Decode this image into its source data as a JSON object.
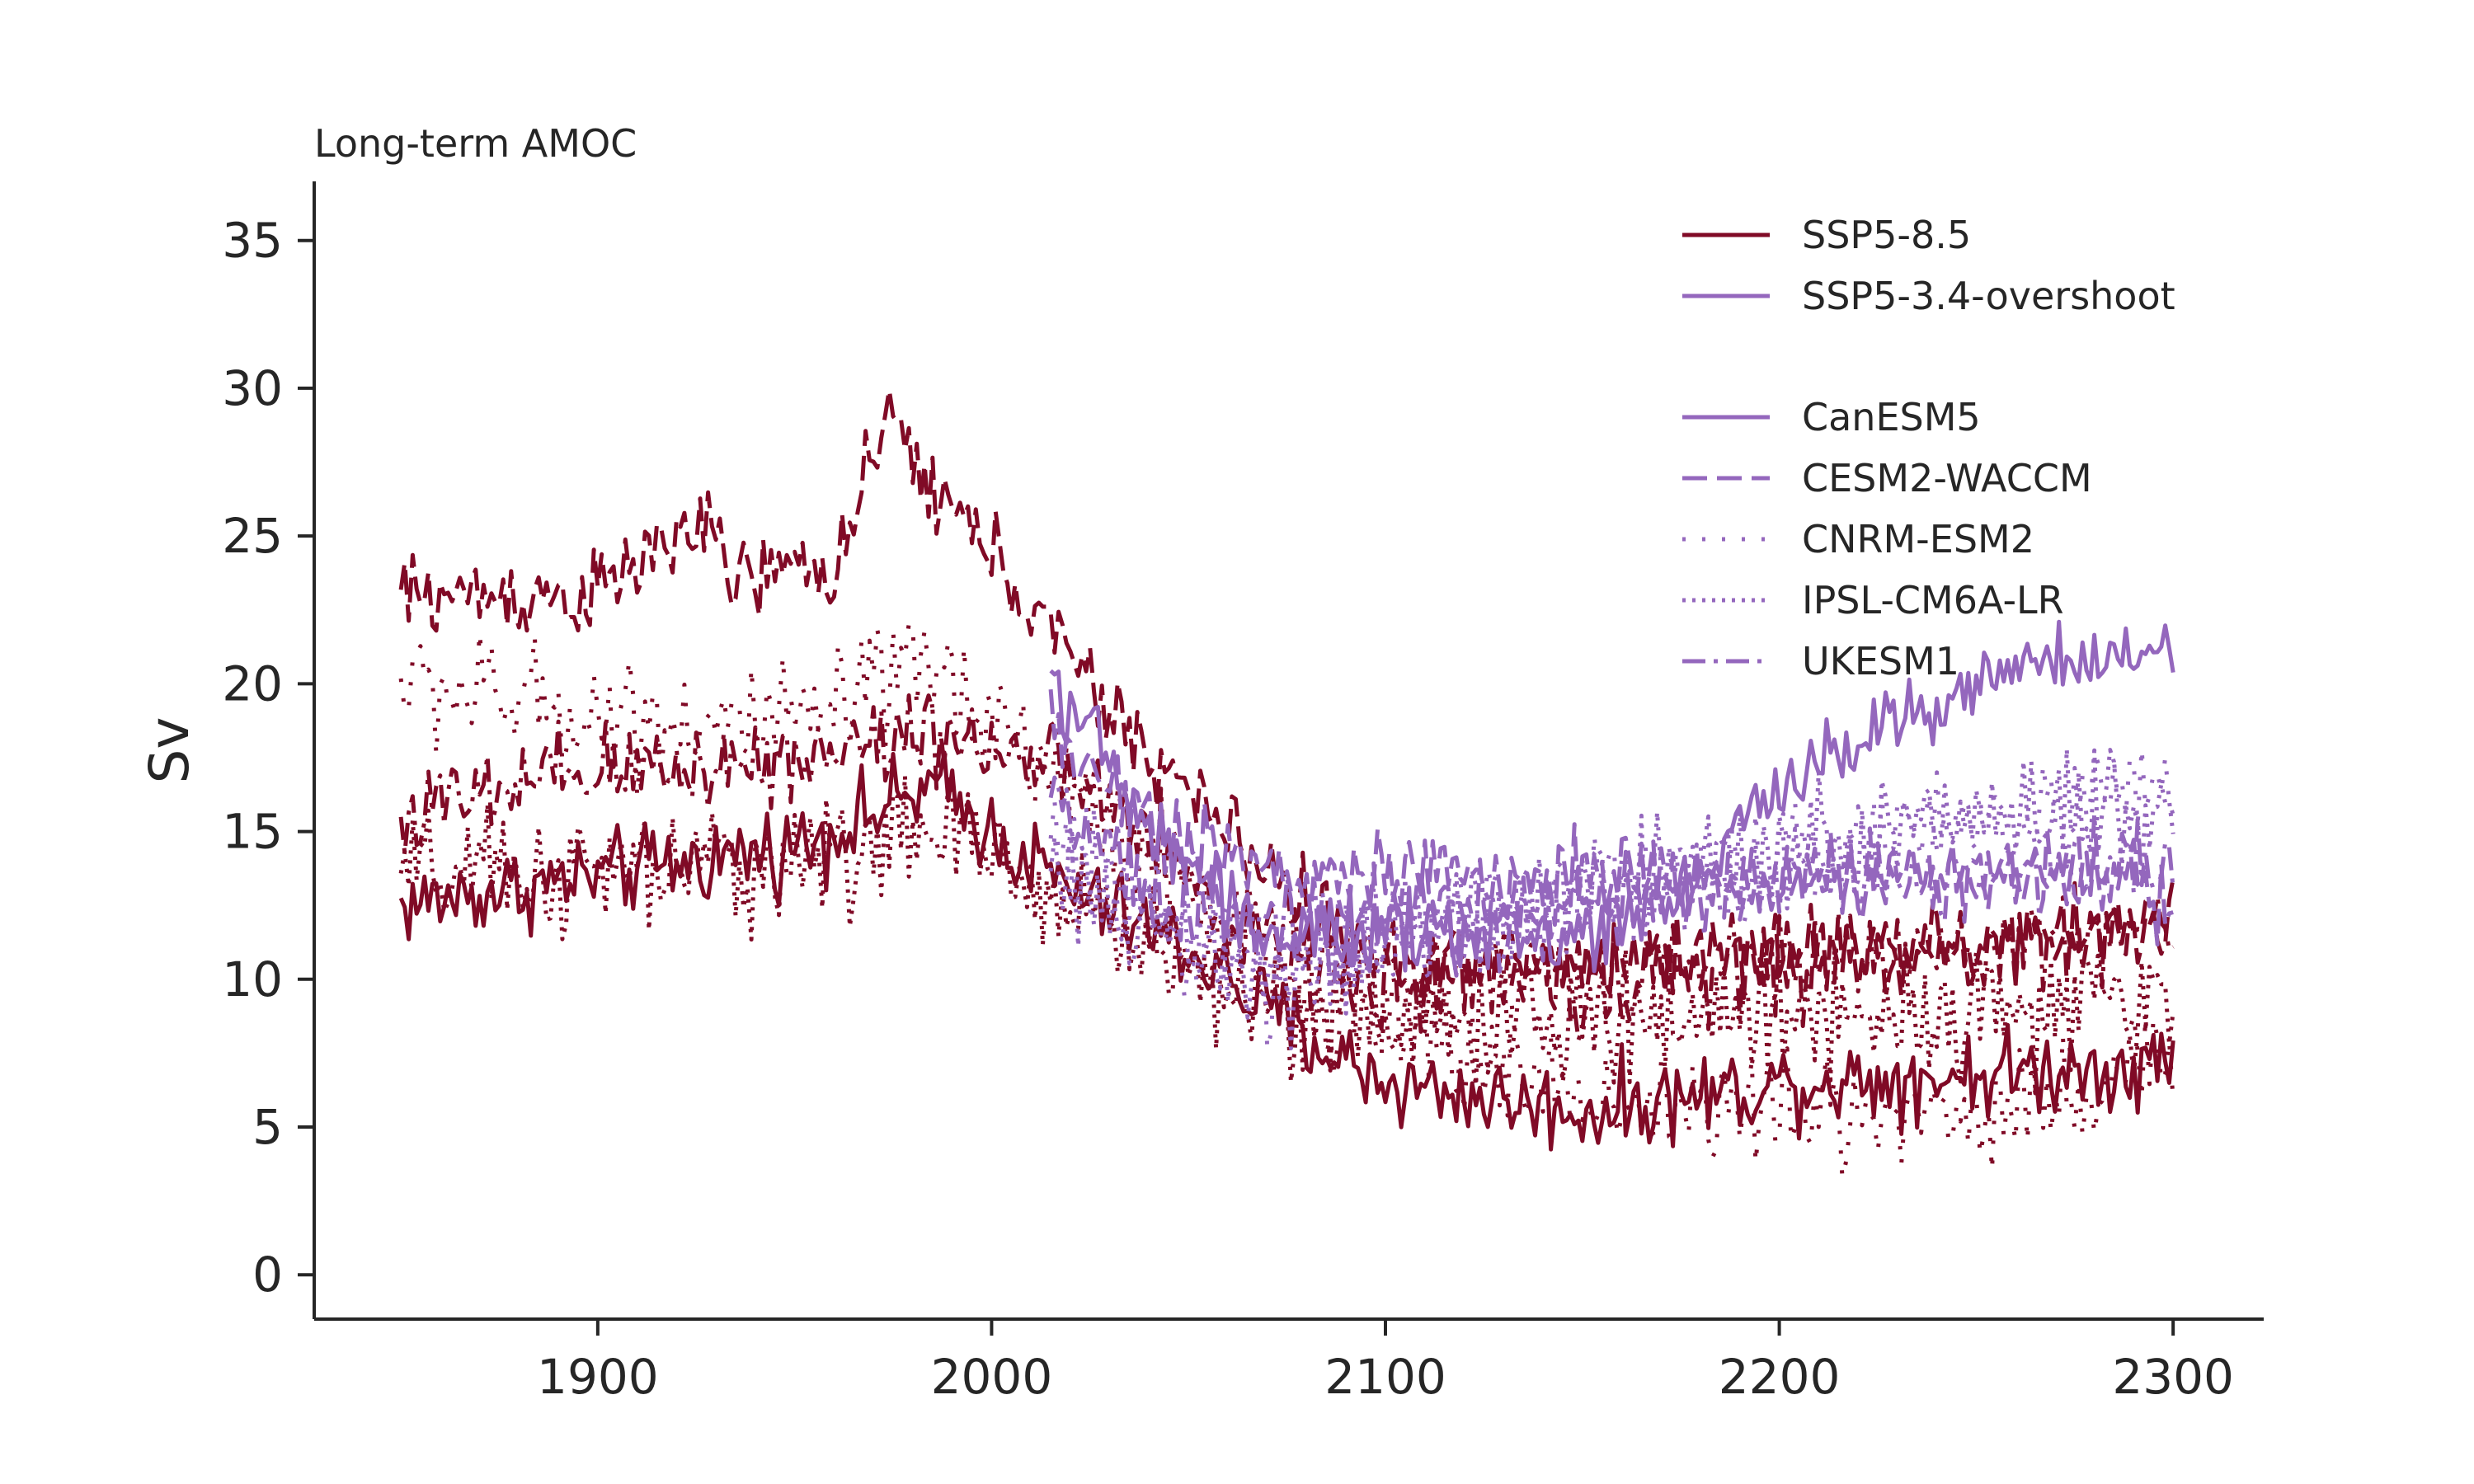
{
  "chart_data": {
    "type": "line",
    "title": "Long-term AMOC",
    "xlabel": "",
    "ylabel": "Sv",
    "xlim": [
      1828,
      2323
    ],
    "ylim": [
      -1.5,
      37
    ],
    "xticks": [
      1900,
      2000,
      2100,
      2200,
      2300
    ],
    "yticks": [
      0,
      5,
      10,
      15,
      20,
      25,
      30,
      35
    ],
    "grid": false,
    "legend_position": "top-right",
    "colors": {
      "SSP5-8.5": "#800a26",
      "SSP5-3.4-overshoot": "#9467bd"
    },
    "scenario_legend": [
      {
        "label": "SSP5-8.5",
        "color": "#800a26"
      },
      {
        "label": "SSP5-3.4-overshoot",
        "color": "#9467bd"
      }
    ],
    "model_legend": [
      {
        "label": "CanESM5",
        "dash": "solid"
      },
      {
        "label": "CESM2-WACCM",
        "dash": "dashed"
      },
      {
        "label": "CNRM-ESM2",
        "dash": "dotted-sparse"
      },
      {
        "label": "IPSL-CM6A-LR",
        "dash": "dotted"
      },
      {
        "label": "UKESM1",
        "dash": "dashdot"
      }
    ],
    "series": [
      {
        "model": "CanESM5",
        "scenario": "SSP5-8.5",
        "dash": "solid",
        "noise": 0.9,
        "x": [
          1850,
          1900,
          1950,
          1985,
          2000,
          2020,
          2050,
          2080,
          2100,
          2150,
          2200,
          2250,
          2300
        ],
        "y": [
          12.5,
          13.5,
          14.5,
          16.5,
          15.0,
          13.0,
          11.0,
          8.0,
          6.5,
          5.5,
          6.5,
          6.8,
          7.2
        ]
      },
      {
        "model": "CESM2-WACCM",
        "scenario": "SSP5-8.5",
        "dash": "dashed",
        "noise": 0.9,
        "x": [
          1850,
          1900,
          1925,
          1935,
          1960,
          1975,
          1985,
          2000,
          2030,
          2060,
          2080,
          2100,
          2150,
          2200,
          2250,
          2300
        ],
        "y": [
          23.0,
          23.0,
          25.5,
          23.5,
          24.0,
          29.0,
          26.5,
          24.5,
          19.0,
          15.0,
          12.5,
          10.5,
          10.5,
          11.0,
          11.0,
          12.0
        ]
      },
      {
        "model": "CNRM-ESM2",
        "scenario": "SSP5-8.5",
        "dash": "dotted-sparse",
        "noise": 1.3,
        "x": [
          1850,
          1900,
          1950,
          1985,
          2000,
          2030,
          2060,
          2100,
          2150,
          2200,
          2250,
          2300
        ],
        "y": [
          20.0,
          19.0,
          18.5,
          20.5,
          19.0,
          15.0,
          11.5,
          8.5,
          6.0,
          5.5,
          5.5,
          7.0
        ]
      },
      {
        "model": "IPSL-CM6A-LR",
        "scenario": "SSP5-8.5",
        "dash": "dotted",
        "noise": 1.3,
        "x": [
          1850,
          1900,
          1950,
          1985,
          2000,
          2030,
          2060,
          2100,
          2150,
          2200,
          2250,
          2300
        ],
        "y": [
          13.5,
          13.5,
          14.0,
          15.0,
          14.0,
          12.0,
          9.5,
          8.5,
          8.5,
          9.0,
          9.0,
          9.0
        ]
      },
      {
        "model": "UKESM1",
        "scenario": "SSP5-8.5",
        "dash": "dashdot",
        "noise": 1.0,
        "x": [
          1850,
          1900,
          1950,
          1985,
          2000,
          2030,
          2060,
          2100,
          2150,
          2200,
          2250,
          2300
        ],
        "y": [
          15.5,
          17.0,
          17.5,
          18.5,
          18.0,
          16.0,
          12.0,
          10.0,
          10.0,
          10.5,
          11.0,
          12.0
        ]
      },
      {
        "model": "CanESM5",
        "scenario": "SSP5-3.4-overshoot",
        "dash": "solid",
        "noise": 0.8,
        "x": [
          2015,
          2040,
          2070,
          2100,
          2150,
          2180,
          2200,
          2230,
          2260,
          2300
        ],
        "y": [
          20.5,
          15.0,
          11.5,
          11.5,
          11.5,
          13.5,
          16.5,
          19.0,
          20.5,
          21.0
        ]
      },
      {
        "model": "CESM2-WACCM",
        "scenario": "SSP5-3.4-overshoot",
        "dash": "dashed",
        "noise": 0.9,
        "x": [
          2015,
          2040,
          2070,
          2100,
          2150,
          2200,
          2250,
          2300
        ],
        "y": [
          18.5,
          15.5,
          13.5,
          13.5,
          13.5,
          13.5,
          13.5,
          13.0
        ]
      },
      {
        "model": "CNRM-ESM2",
        "scenario": "SSP5-3.4-overshoot",
        "dash": "dotted-sparse",
        "noise": 1.1,
        "x": [
          2015,
          2040,
          2070,
          2100,
          2150,
          2200,
          2250,
          2300
        ],
        "y": [
          15.0,
          12.0,
          10.0,
          11.5,
          13.0,
          14.0,
          15.5,
          16.5
        ]
      },
      {
        "model": "IPSL-CM6A-LR",
        "scenario": "SSP5-3.4-overshoot",
        "dash": "dotted",
        "noise": 1.2,
        "x": [
          2015,
          2040,
          2070,
          2100,
          2150,
          2200,
          2250,
          2300
        ],
        "y": [
          14.0,
          11.5,
          10.0,
          11.0,
          13.0,
          14.5,
          15.5,
          16.0
        ]
      },
      {
        "model": "UKESM1",
        "scenario": "SSP5-3.4-overshoot",
        "dash": "dashdot",
        "noise": 1.0,
        "x": [
          2015,
          2040,
          2070,
          2100,
          2150,
          2200,
          2250,
          2300
        ],
        "y": [
          16.5,
          13.0,
          11.5,
          12.0,
          12.5,
          13.0,
          13.5,
          14.0
        ]
      }
    ]
  }
}
